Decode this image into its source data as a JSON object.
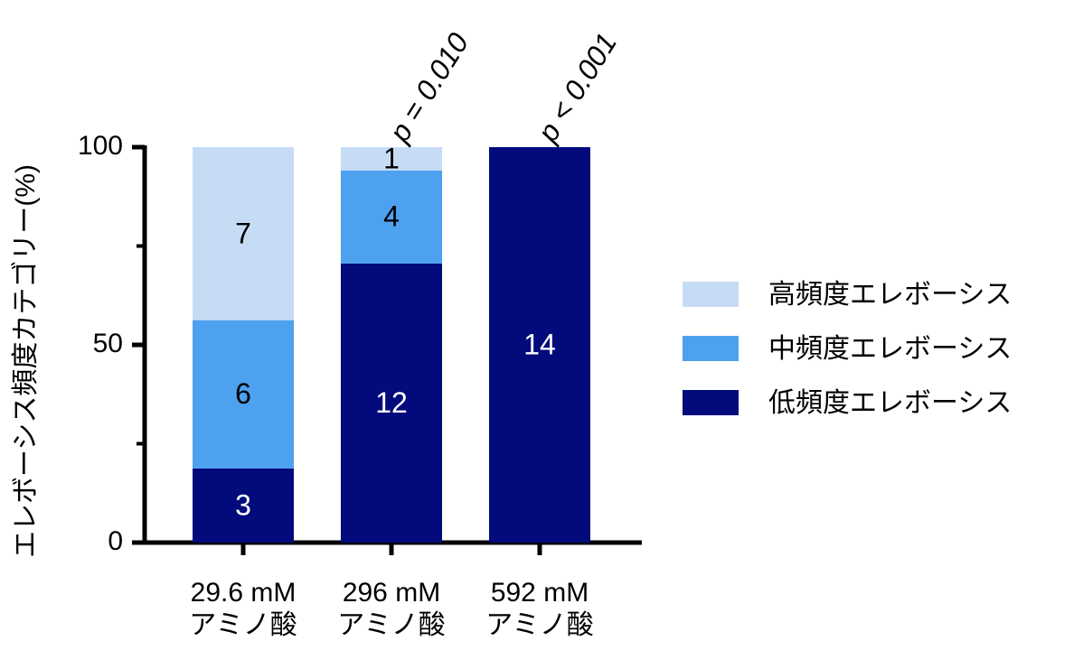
{
  "chart_data": {
    "type": "stacked_bar",
    "y_label": "エレボーシス頻度カテゴリー(%)",
    "categories": [
      "29.6 mM\nアミノ酸",
      "296 mM\nアミノ酸",
      "592 mM\nアミノ酸"
    ],
    "series": [
      {
        "name": "低頻度エレボーシス",
        "color": "#020a7c",
        "values": [
          18.75,
          70.59,
          100
        ],
        "counts": [
          3,
          12,
          14
        ],
        "label_color": "#ffffff"
      },
      {
        "name": "中頻度エレボーシス",
        "color": "#4ea1ef",
        "values": [
          37.5,
          23.53,
          0
        ],
        "counts": [
          6,
          4,
          null
        ],
        "label_color": "#000000"
      },
      {
        "name": "高頻度エレボーシス",
        "color": "#c6dcf5",
        "values": [
          43.75,
          5.88,
          0
        ],
        "counts": [
          7,
          1,
          null
        ],
        "label_color": "#000000"
      }
    ],
    "annotations": [
      null,
      "p = 0.010",
      "p < 0.001"
    ],
    "ylim": [
      0,
      100
    ],
    "yticks": [
      0,
      50,
      100
    ],
    "minor_yticks": [
      25,
      75
    ],
    "legend": "right"
  }
}
